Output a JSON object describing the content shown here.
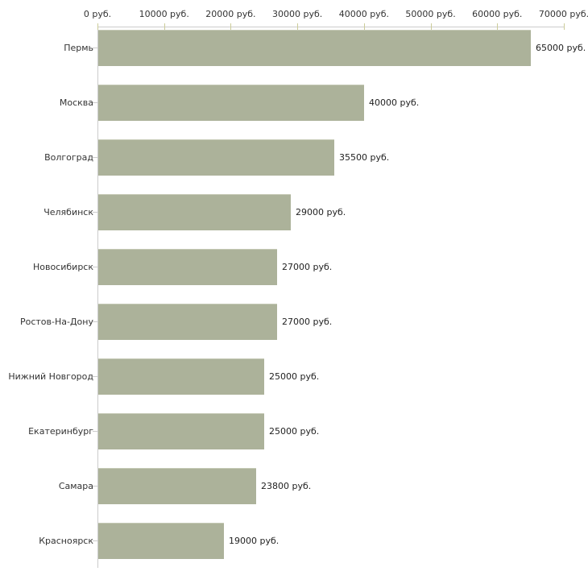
{
  "chart_data": {
    "type": "bar",
    "orientation": "horizontal",
    "title": "",
    "xlabel": "",
    "ylabel": "",
    "categories": [
      "Пермь",
      "Москва",
      "Волгоград",
      "Челябинск",
      "Новосибирск",
      "Ростов-На-Дону",
      "Нижний Новгород",
      "Екатеринбург",
      "Самара",
      "Красноярск"
    ],
    "values": [
      65000,
      40000,
      35500,
      29000,
      27000,
      27000,
      25000,
      25000,
      23800,
      19000
    ],
    "value_labels": [
      "65000 руб.",
      "40000 руб.",
      "35500 руб.",
      "29000 руб.",
      "27000 руб.",
      "27000 руб.",
      "25000 руб.",
      "25000 руб.",
      "23800 руб.",
      "19000 руб."
    ],
    "x_axis": {
      "position": "top",
      "min": 0,
      "max": 70000,
      "ticks": [
        0,
        10000,
        20000,
        30000,
        40000,
        50000,
        60000,
        70000
      ],
      "tick_labels": [
        "0 руб.",
        "10000 руб.",
        "20000 руб.",
        "30000 руб.",
        "40000 руб.",
        "50000 руб.",
        "60000 руб.",
        "70000 руб."
      ]
    },
    "grid": false,
    "legend": false,
    "colors": {
      "bar": "#acb29a",
      "bar_highlight": "#c5c9b5",
      "axis_line": "#cccccc",
      "tick_mark": "#cccc99",
      "text": "#333333",
      "background": "#ffffff"
    }
  }
}
